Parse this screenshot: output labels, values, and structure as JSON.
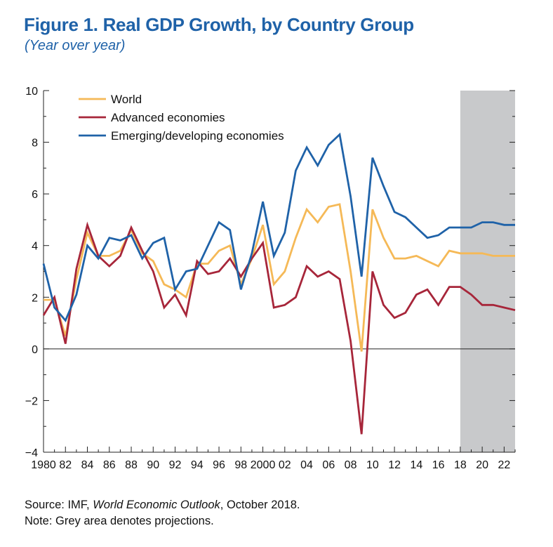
{
  "header": {
    "title": "Figure 1. Real GDP Growth, by Country Group",
    "subtitle": "(Year over year)"
  },
  "chart_data": {
    "type": "line",
    "x": [
      1980,
      1981,
      1982,
      1983,
      1984,
      1985,
      1986,
      1987,
      1988,
      1989,
      1990,
      1991,
      1992,
      1993,
      1994,
      1995,
      1996,
      1997,
      1998,
      1999,
      2000,
      2001,
      2002,
      2003,
      2004,
      2005,
      2006,
      2007,
      2008,
      2009,
      2010,
      2011,
      2012,
      2013,
      2014,
      2015,
      2016,
      2017,
      2018,
      2019,
      2020,
      2021,
      2022,
      2023
    ],
    "x_tick_labels": [
      "1980",
      "82",
      "84",
      "86",
      "88",
      "90",
      "92",
      "94",
      "96",
      "98",
      "2000",
      "02",
      "04",
      "06",
      "08",
      "10",
      "12",
      "14",
      "16",
      "18",
      "20",
      "22"
    ],
    "y_tick_labels": [
      "10",
      "8",
      "6",
      "4",
      "2",
      "0",
      "−2",
      "−4"
    ],
    "ylim": [
      -4,
      10
    ],
    "xlim": [
      1980,
      2023
    ],
    "projection_start": 2018,
    "series": [
      {
        "name": "World",
        "color": "#f5b957",
        "values": [
          1.9,
          1.9,
          0.5,
          2.7,
          4.5,
          3.6,
          3.6,
          3.8,
          4.6,
          3.7,
          3.4,
          2.5,
          2.3,
          2.0,
          3.3,
          3.3,
          3.8,
          4.0,
          2.5,
          3.5,
          4.8,
          2.5,
          3.0,
          4.3,
          5.4,
          4.9,
          5.5,
          5.6,
          3.0,
          -0.1,
          5.4,
          4.3,
          3.5,
          3.5,
          3.6,
          3.4,
          3.2,
          3.8,
          3.7,
          3.7,
          3.7,
          3.6,
          3.6,
          3.6
        ]
      },
      {
        "name": "Advanced economies",
        "color": "#a7263a",
        "values": [
          1.3,
          2.0,
          0.2,
          3.1,
          4.8,
          3.6,
          3.2,
          3.6,
          4.7,
          3.8,
          3.0,
          1.6,
          2.1,
          1.3,
          3.4,
          2.9,
          3.0,
          3.5,
          2.8,
          3.5,
          4.1,
          1.6,
          1.7,
          2.0,
          3.2,
          2.8,
          3.0,
          2.7,
          0.3,
          -3.3,
          3.0,
          1.7,
          1.2,
          1.4,
          2.1,
          2.3,
          1.7,
          2.4,
          2.4,
          2.1,
          1.7,
          1.7,
          1.6,
          1.5
        ]
      },
      {
        "name": "Emerging/developing economies",
        "color": "#1f62a8",
        "values": [
          3.3,
          1.6,
          1.1,
          2.1,
          4.0,
          3.5,
          4.3,
          4.2,
          4.4,
          3.5,
          4.1,
          4.3,
          2.3,
          3.0,
          3.1,
          4.0,
          4.9,
          4.6,
          2.3,
          3.7,
          5.7,
          3.6,
          4.5,
          6.9,
          7.8,
          7.1,
          7.9,
          8.3,
          5.9,
          2.8,
          7.4,
          6.3,
          5.3,
          5.1,
          4.7,
          4.3,
          4.4,
          4.7,
          4.7,
          4.7,
          4.9,
          4.9,
          4.8,
          4.8
        ]
      }
    ]
  },
  "footer": {
    "source_prefix": "Source: IMF, ",
    "source_italic": "World Economic Outlook",
    "source_suffix": ", October 2018.",
    "note": "Note: Grey area denotes projections."
  }
}
